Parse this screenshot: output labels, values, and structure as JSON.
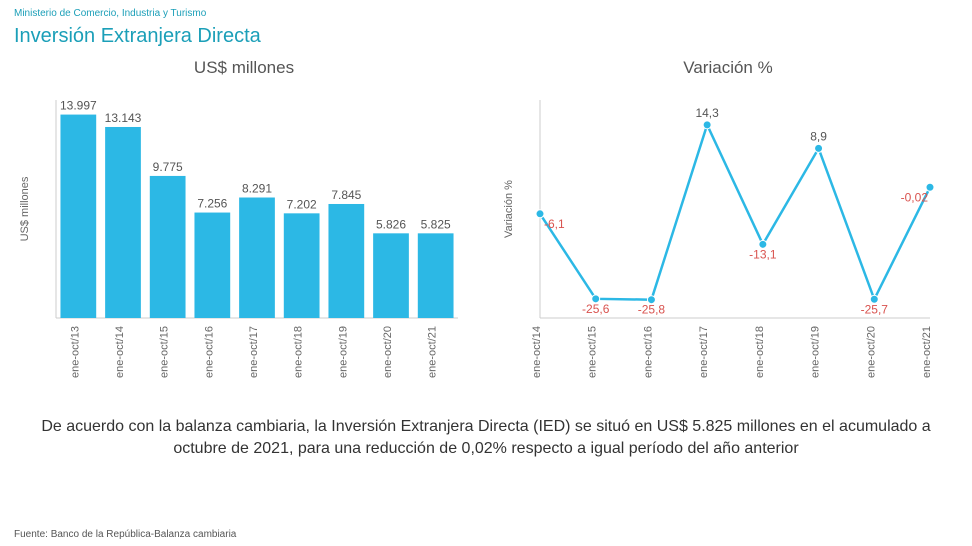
{
  "header": {
    "ministry": "Ministerio de Comercio, Industria y Turismo",
    "title": "Inversión Extranjera Directa"
  },
  "bar_chart": {
    "type": "bar",
    "title": "US$ millones",
    "ylabel": "US$ millones",
    "categories": [
      "ene-oct/13",
      "ene-oct/14",
      "ene-oct/15",
      "ene-oct/16",
      "ene-oct/17",
      "ene-oct/18",
      "ene-oct/19",
      "ene-oct/20",
      "ene-oct/21"
    ],
    "values": [
      13997,
      13143,
      9775,
      7256,
      8291,
      7202,
      7845,
      5826,
      5825
    ],
    "value_labels": [
      "13.997",
      "13.143",
      "9.775",
      "7.256",
      "8.291",
      "7.202",
      "7.845",
      "5.826",
      "5.825"
    ],
    "bar_color": "#2cb8e5",
    "value_label_color": "#555555",
    "axis_color": "#cccccc",
    "label_color": "#666666",
    "ylabel_color": "#666666",
    "ylim": [
      0,
      15000
    ],
    "bar_width_ratio": 0.8,
    "title_fontsize": 17,
    "value_fontsize": 12,
    "category_fontsize": 11,
    "ylabel_fontsize": 11
  },
  "line_chart": {
    "type": "line",
    "title": "Variación %",
    "ylabel": "Variación %",
    "categories": [
      "ene-oct/14",
      "ene-oct/15",
      "ene-oct/16",
      "ene-oct/17",
      "ene-oct/18",
      "ene-oct/19",
      "ene-oct/20",
      "ene-oct/21"
    ],
    "values": [
      -6.1,
      -25.6,
      -25.8,
      14.3,
      -13.1,
      8.9,
      -25.7,
      -0.02
    ],
    "value_labels": [
      "-6,1",
      "-25,6",
      "-25,8",
      "14,3",
      "-13,1",
      "8,9",
      "-25,7",
      "-0,02"
    ],
    "line_color": "#2cb8e5",
    "marker_color": "#2cb8e5",
    "marker_border": "#ffffff",
    "positive_label_color": "#555555",
    "negative_label_color": "#d9534f",
    "axis_color": "#cccccc",
    "label_color": "#666666",
    "ylabel_color": "#666666",
    "ylim": [
      -30,
      20
    ],
    "line_width": 2.5,
    "marker_radius": 4,
    "title_fontsize": 17,
    "value_fontsize": 12,
    "category_fontsize": 11,
    "ylabel_fontsize": 11
  },
  "footer": {
    "text": "De acuerdo con la balanza cambiaria, la Inversión Extranjera Directa (IED) se situó en US$ 5.825 millones en el acumulado a octubre de 2021, para una reducción de 0,02% respecto a igual período del año anterior",
    "source": "Fuente: Banco de la República-Balanza cambiaria"
  },
  "colors": {
    "background": "#ffffff",
    "accent": "#1b9fb8"
  }
}
